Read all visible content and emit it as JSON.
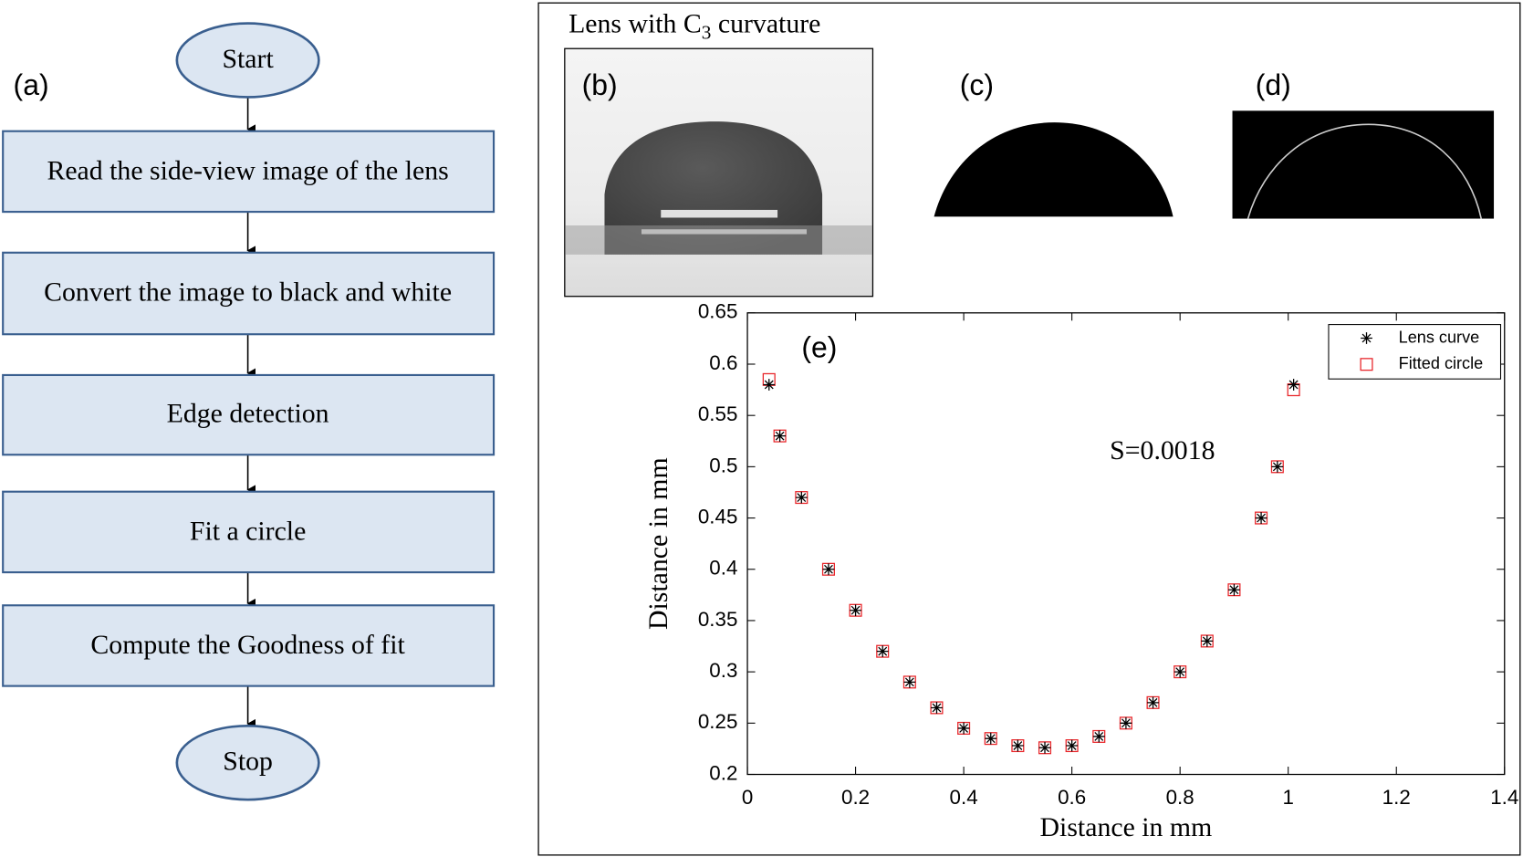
{
  "flowchart": {
    "label": "(a)",
    "nodes": [
      {
        "label": "Start"
      },
      {
        "label": "Read the side-view image of the lens"
      },
      {
        "label": "Convert the image to black and white"
      },
      {
        "label": "Edge detection"
      },
      {
        "label": "Fit a circle"
      },
      {
        "label": "Compute the Goodness of fit"
      },
      {
        "label": "Stop"
      }
    ]
  },
  "panels": {
    "title": [
      "Lens with C",
      "3",
      "curvature"
    ],
    "labels": [
      "(b)",
      "(c)",
      "(d)"
    ]
  },
  "chart_data": {
    "type": "scatter",
    "panel_label": "(e)",
    "annotation": "S=0.0018",
    "x_label": "Distance in mm",
    "y_label": "Distance in mm",
    "xlim": [
      0,
      1.4
    ],
    "xticks": [
      0,
      0.2,
      0.4,
      0.6,
      0.8,
      1,
      1.2,
      1.4
    ],
    "ylim": [
      0.2,
      0.65
    ],
    "yticks": [
      0.2,
      0.25,
      0.3,
      0.35,
      0.4,
      0.45,
      0.5,
      0.55,
      0.6,
      0.65
    ],
    "legend": "northeast",
    "series": [
      {
        "name": "Lens curve",
        "color": "#000000",
        "marker": "asterisk",
        "x": [
          0.04,
          0.06,
          0.1,
          0.15,
          0.2,
          0.25,
          0.3,
          0.35,
          0.4,
          0.45,
          0.5,
          0.55,
          0.6,
          0.65,
          0.7,
          0.75,
          0.8,
          0.85,
          0.9,
          0.95,
          0.98,
          1.01
        ],
        "values": [
          0.58,
          0.53,
          0.47,
          0.4,
          0.36,
          0.32,
          0.29,
          0.265,
          0.245,
          0.235,
          0.228,
          0.226,
          0.228,
          0.237,
          0.25,
          0.27,
          0.3,
          0.33,
          0.38,
          0.45,
          0.5,
          0.58
        ]
      },
      {
        "name": "Fitted circle",
        "color": "#e8262a",
        "marker": "square",
        "x": [
          0.04,
          0.06,
          0.1,
          0.15,
          0.2,
          0.25,
          0.3,
          0.35,
          0.4,
          0.45,
          0.5,
          0.55,
          0.6,
          0.65,
          0.7,
          0.75,
          0.8,
          0.85,
          0.9,
          0.95,
          0.98,
          1.01
        ],
        "values": [
          0.585,
          0.53,
          0.47,
          0.4,
          0.36,
          0.32,
          0.29,
          0.265,
          0.245,
          0.235,
          0.228,
          0.226,
          0.228,
          0.237,
          0.25,
          0.27,
          0.3,
          0.33,
          0.38,
          0.45,
          0.5,
          0.575
        ]
      }
    ]
  }
}
